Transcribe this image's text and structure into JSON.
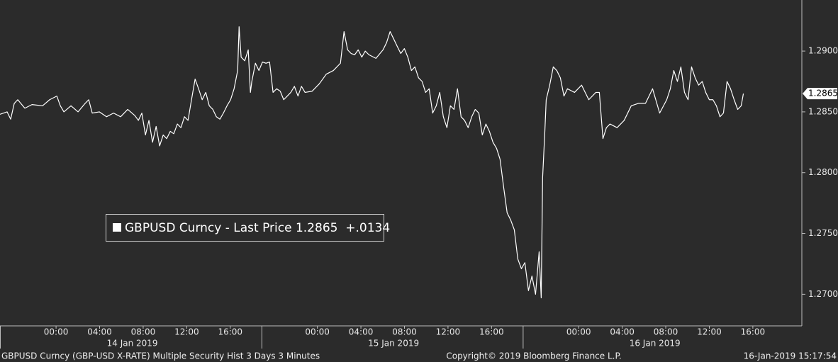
{
  "chart_data": {
    "type": "line",
    "series": [
      {
        "name": "GBPUSD Curncy - Last Price 1.2865  +.0134",
        "color": "#ffffff",
        "x": [
          -5.15,
          -4.5,
          -4.17,
          -3.84,
          -3.52,
          -2.87,
          -2.21,
          -1.24,
          -0.59,
          0.07,
          0.39,
          0.72,
          1.37,
          2.02,
          2.67,
          3.0,
          3.32,
          3.97,
          4.63,
          5.28,
          5.93,
          6.58,
          7.23,
          7.56,
          7.88,
          8.21,
          8.53,
          8.86,
          9.19,
          9.51,
          9.84,
          10.16,
          10.49,
          10.81,
          11.14,
          11.47,
          11.79,
          12.12,
          12.44,
          12.77,
          13.09,
          13.42,
          13.75,
          14.07,
          14.4,
          14.72,
          15.05,
          15.37,
          15.7,
          16.03,
          16.35,
          16.68,
          16.81,
          17.0,
          17.33,
          17.65,
          17.85,
          17.98,
          18.31,
          18.63,
          18.96,
          19.28,
          19.61,
          19.93,
          20.26,
          20.59,
          20.91,
          21.24,
          21.56,
          21.89,
          22.22,
          22.54,
          22.87,
          23.52,
          24.17,
          24.82,
          25.47,
          26.12,
          26.45,
          26.78,
          27.1,
          27.43,
          27.75,
          28.08,
          28.4,
          28.73,
          29.38,
          30.03,
          30.36,
          30.68,
          31.01,
          31.33,
          31.66,
          31.99,
          32.31,
          32.64,
          32.96,
          33.29,
          33.62,
          33.94,
          34.27,
          34.59,
          34.92,
          35.24,
          35.57,
          35.9,
          36.22,
          36.55,
          36.87,
          37.2,
          37.52,
          37.85,
          38.18,
          38.5,
          38.83,
          39.15,
          39.48,
          39.8,
          40.13,
          40.46,
          40.78,
          41.11,
          41.43,
          41.76,
          42.09,
          42.41,
          42.74,
          43.06,
          43.39,
          43.71,
          44.04,
          44.37,
          44.56,
          44.69,
          44.88,
          45.02,
          45.34,
          45.67,
          45.99,
          46.32,
          46.65,
          46.97,
          47.62,
          48.27,
          48.93,
          49.58,
          49.9,
          50.23,
          50.55,
          50.88,
          51.53,
          52.18,
          52.83,
          53.49,
          54.14,
          54.79,
          55.44,
          56.09,
          56.42,
          56.74,
          57.07,
          57.39,
          57.72,
          58.05,
          58.37,
          58.7,
          59.02,
          59.35,
          59.67,
          60.0,
          60.33,
          60.65,
          60.98,
          61.3,
          61.63,
          61.95,
          62.28,
          62.61,
          62.93,
          63.13
        ],
        "values": [
          1.2848,
          1.285,
          1.2844,
          1.2857,
          1.286,
          1.2853,
          1.2856,
          1.2855,
          1.286,
          1.2863,
          1.2855,
          1.285,
          1.2855,
          1.285,
          1.2857,
          1.286,
          1.2849,
          1.285,
          1.2846,
          1.2849,
          1.2846,
          1.2852,
          1.2847,
          1.2843,
          1.2849,
          1.2831,
          1.2843,
          1.2825,
          1.2838,
          1.2822,
          1.2831,
          1.2828,
          1.2834,
          1.2832,
          1.284,
          1.2837,
          1.2846,
          1.2843,
          1.286,
          1.2877,
          1.2869,
          1.286,
          1.2866,
          1.2855,
          1.2852,
          1.2846,
          1.2844,
          1.2849,
          1.2855,
          1.286,
          1.2869,
          1.2884,
          1.292,
          1.2895,
          1.2892,
          1.2901,
          1.2866,
          1.2875,
          1.289,
          1.2884,
          1.2891,
          1.289,
          1.2891,
          1.2866,
          1.2869,
          1.2867,
          1.286,
          1.2863,
          1.2866,
          1.2871,
          1.2863,
          1.2871,
          1.2866,
          1.2867,
          1.2873,
          1.2881,
          1.2884,
          1.289,
          1.2916,
          1.2901,
          1.2898,
          1.2897,
          1.2901,
          1.2895,
          1.29,
          1.2897,
          1.2894,
          1.2901,
          1.2907,
          1.2916,
          1.291,
          1.2904,
          1.2898,
          1.2902,
          1.2895,
          1.2884,
          1.2887,
          1.2878,
          1.2875,
          1.2866,
          1.2869,
          1.2849,
          1.2855,
          1.2866,
          1.2846,
          1.2837,
          1.2855,
          1.2852,
          1.2869,
          1.2846,
          1.2843,
          1.2837,
          1.2846,
          1.2852,
          1.2849,
          1.2831,
          1.284,
          1.2834,
          1.2825,
          1.282,
          1.2811,
          1.2788,
          1.2767,
          1.2761,
          1.2753,
          1.2729,
          1.2721,
          1.2726,
          1.2703,
          1.2715,
          1.27,
          1.2735,
          1.2697,
          1.2796,
          1.2831,
          1.286,
          1.2872,
          1.2887,
          1.2884,
          1.2878,
          1.2863,
          1.2869,
          1.2866,
          1.2872,
          1.286,
          1.2866,
          1.2866,
          1.2828,
          1.2837,
          1.284,
          1.2837,
          1.2843,
          1.2855,
          1.2857,
          1.2857,
          1.2869,
          1.2849,
          1.286,
          1.2869,
          1.2884,
          1.2875,
          1.2887,
          1.2866,
          1.286,
          1.2887,
          1.2878,
          1.2872,
          1.2875,
          1.2866,
          1.286,
          1.286,
          1.2855,
          1.2846,
          1.2849,
          1.2875,
          1.2869,
          1.286,
          1.2852,
          1.2855,
          1.2865
        ]
      }
    ],
    "last_value": 1.2865,
    "xlim": [
      -5.15,
      68.5
    ],
    "ylim": [
      1.2674,
      1.2942
    ],
    "yticks": [
      {
        "value": 1.27,
        "label": "1.2700"
      },
      {
        "value": 1.275,
        "label": "1.2750"
      },
      {
        "value": 1.28,
        "label": "1.2800"
      },
      {
        "value": 1.285,
        "label": "1.2850"
      },
      {
        "value": 1.29,
        "label": "1.2900"
      }
    ],
    "xticks": [
      {
        "value": 0,
        "label": "00:00"
      },
      {
        "value": 4,
        "label": "04:00"
      },
      {
        "value": 8,
        "label": "08:00"
      },
      {
        "value": 12,
        "label": "12:00"
      },
      {
        "value": 16,
        "label": "16:00"
      },
      {
        "value": 24,
        "label": "00:00"
      },
      {
        "value": 28,
        "label": "04:00"
      },
      {
        "value": 32,
        "label": "08:00"
      },
      {
        "value": 36,
        "label": "12:00"
      },
      {
        "value": 40,
        "label": "16:00"
      },
      {
        "value": 48,
        "label": "00:00"
      },
      {
        "value": 52,
        "label": "04:00"
      },
      {
        "value": 56,
        "label": "08:00"
      },
      {
        "value": 60,
        "label": "12:00"
      },
      {
        "value": 64,
        "label": "16:00"
      }
    ],
    "day_labels": [
      {
        "value": 7,
        "label": "14 Jan 2019"
      },
      {
        "value": 31,
        "label": "15 Jan 2019"
      },
      {
        "value": 55,
        "label": "16 Jan 2019"
      }
    ],
    "day_ticks": [
      18.9,
      42.9
    ],
    "footer": {
      "left": "GBPUSD Curncy (GBP-USD X-RATE) Multiple Security Hist   3 Days 3 Minutes",
      "center": "Copyright© 2019 Bloomberg Finance L.P.",
      "right": "16-Jan-2019 15:17:54"
    }
  }
}
